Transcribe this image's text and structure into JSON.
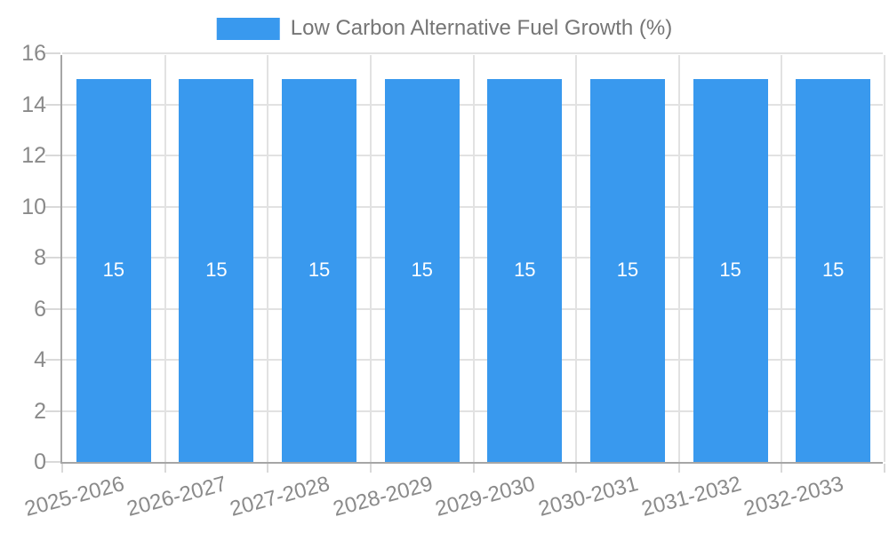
{
  "legend": {
    "label": "Low Carbon Alternative Fuel Growth (%)"
  },
  "chart_data": {
    "type": "bar",
    "title": "Low Carbon Alternative Fuel Growth (%)",
    "categories": [
      "2025-2026",
      "2026-2027",
      "2027-2028",
      "2028-2029",
      "2029-2030",
      "2030-2031",
      "2031-2032",
      "2032-2033"
    ],
    "values": [
      15,
      15,
      15,
      15,
      15,
      15,
      15,
      15
    ],
    "value_labels": [
      "15",
      "15",
      "15",
      "15",
      "15",
      "15",
      "15",
      "15"
    ],
    "xlabel": "",
    "ylabel": "",
    "ylim": [
      0,
      16
    ],
    "ytick_step": 2,
    "ytick_labels": [
      "0",
      "2",
      "4",
      "6",
      "8",
      "10",
      "12",
      "14",
      "16"
    ],
    "grid": true,
    "legend_position": "top",
    "bar_color": "#3999ee",
    "value_label_color": "#ffffff",
    "grid_color": "#e2e2e2",
    "axis_color": "#a6a6a6",
    "tick_text_color": "#8a8a8a"
  }
}
